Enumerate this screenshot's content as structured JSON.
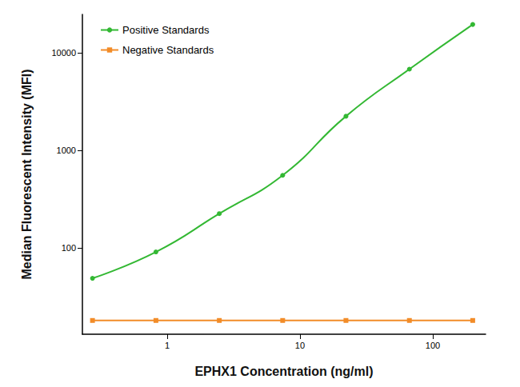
{
  "chart_data": {
    "type": "line",
    "xlabel": "EPHX1 Concentration (ng/ml)",
    "ylabel": "Median Fluorescent Intensity (MFI)",
    "x": [
      0.274,
      0.823,
      2.47,
      7.41,
      22.2,
      66.7,
      200
    ],
    "series": [
      {
        "name": "Positive Standards",
        "color": "#33b833",
        "marker": "circle",
        "values": [
          48.8,
          91,
          225,
          557,
          2250,
          6850,
          19700
        ]
      },
      {
        "name": "Negative Standards",
        "color": "#f28c28",
        "marker": "rect",
        "values": [
          18,
          18,
          18,
          18,
          18,
          18,
          18
        ]
      }
    ],
    "log": true,
    "xlim": [
      0.23,
      250
    ],
    "xticks": [
      1,
      10,
      100
    ],
    "ylim": [
      13,
      25000
    ],
    "yticks": [
      100,
      1000,
      10000
    ],
    "grid": false,
    "legend": "upper left"
  }
}
